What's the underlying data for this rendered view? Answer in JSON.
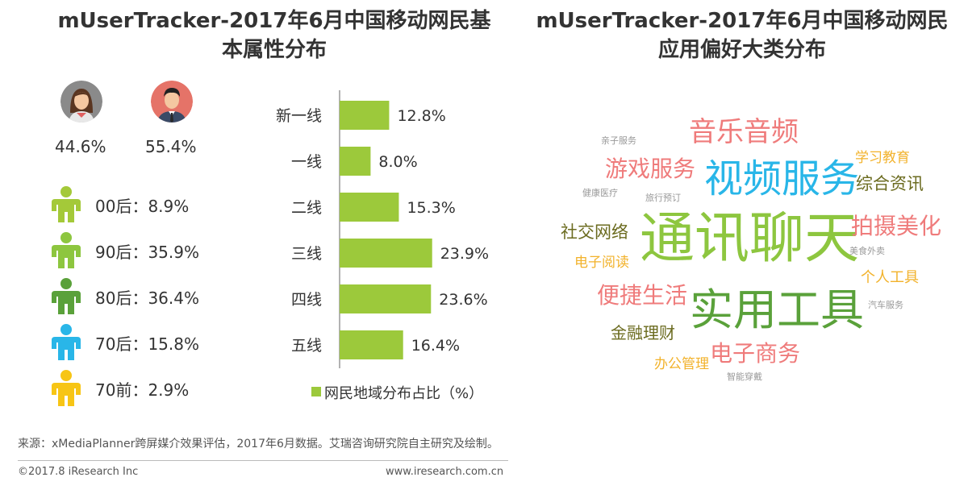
{
  "titles": {
    "left": "mUserTracker-2017年6月中国移动网民基本属性分布",
    "right": "mUserTracker-2017年6月中国移动网民应用偏好大类分布"
  },
  "gender": [
    {
      "label": "44.6%",
      "value": 44.6,
      "icon": "female-avatar-icon"
    },
    {
      "label": "55.4%",
      "value": 55.4,
      "icon": "male-avatar-icon"
    }
  ],
  "age_groups": [
    {
      "label": "00后：8.9%",
      "value": 8.9,
      "color": "#a4c939"
    },
    {
      "label": "90后：35.9%",
      "value": 35.9,
      "color": "#8dc63f"
    },
    {
      "label": "80后：36.4%",
      "value": 36.4,
      "color": "#5aa13a"
    },
    {
      "label": "70后：15.8%",
      "value": 15.8,
      "color": "#29b6e8"
    },
    {
      "label": "70前：2.9%",
      "value": 2.9,
      "color": "#f7c515"
    }
  ],
  "chart_data": {
    "type": "bar",
    "orientation": "horizontal",
    "categories": [
      "新一线",
      "一线",
      "二线",
      "三线",
      "四线",
      "五线"
    ],
    "values": [
      12.8,
      8.0,
      15.3,
      23.9,
      23.6,
      16.4
    ],
    "value_labels": [
      "12.8%",
      "8.0%",
      "15.3%",
      "23.9%",
      "23.6%",
      "16.4%"
    ],
    "series": [
      {
        "name": "网民地域分布占比（%）",
        "values": [
          12.8,
          8.0,
          15.3,
          23.9,
          23.6,
          16.4
        ]
      }
    ],
    "color": "#9cc93b",
    "legend_position": "bottom"
  },
  "legend": {
    "label": "网民地域分布占比（%）"
  },
  "word_cloud": [
    {
      "text": "通讯聊天",
      "color": "#8dc63f"
    },
    {
      "text": "实用工具",
      "color": "#5aa13a"
    },
    {
      "text": "视频服务",
      "color": "#29b6e8"
    },
    {
      "text": "音乐音频",
      "color": "#ef7b7b"
    },
    {
      "text": "游戏服务",
      "color": "#ef7b7b"
    },
    {
      "text": "拍摄美化",
      "color": "#ef7b7b"
    },
    {
      "text": "便捷生活",
      "color": "#ef7b7b"
    },
    {
      "text": "电子商务",
      "color": "#ef7b7b"
    },
    {
      "text": "综合资讯",
      "color": "#6b6b1f"
    },
    {
      "text": "社交网络",
      "color": "#6b6b1f"
    },
    {
      "text": "金融理财",
      "color": "#6b6b1f"
    },
    {
      "text": "学习教育",
      "color": "#f2b22b"
    },
    {
      "text": "电子阅读",
      "color": "#f2b22b"
    },
    {
      "text": "个人工具",
      "color": "#f2b22b"
    },
    {
      "text": "办公管理",
      "color": "#f2b22b"
    },
    {
      "text": "亲子服务",
      "color": "#999999"
    },
    {
      "text": "健康医疗",
      "color": "#999999"
    },
    {
      "text": "旅行预订",
      "color": "#999999"
    },
    {
      "text": "美食外卖",
      "color": "#999999"
    },
    {
      "text": "汽车服务",
      "color": "#999999"
    },
    {
      "text": "智能穿戴",
      "color": "#999999"
    }
  ],
  "source": "来源：xMediaPlanner跨屏媒介效果评估，2017年6月数据。艾瑞咨询研究院自主研究及绘制。",
  "footer": {
    "copyright": "©2017.8 iResearch Inc",
    "website": "www.iresearch.com.cn"
  }
}
